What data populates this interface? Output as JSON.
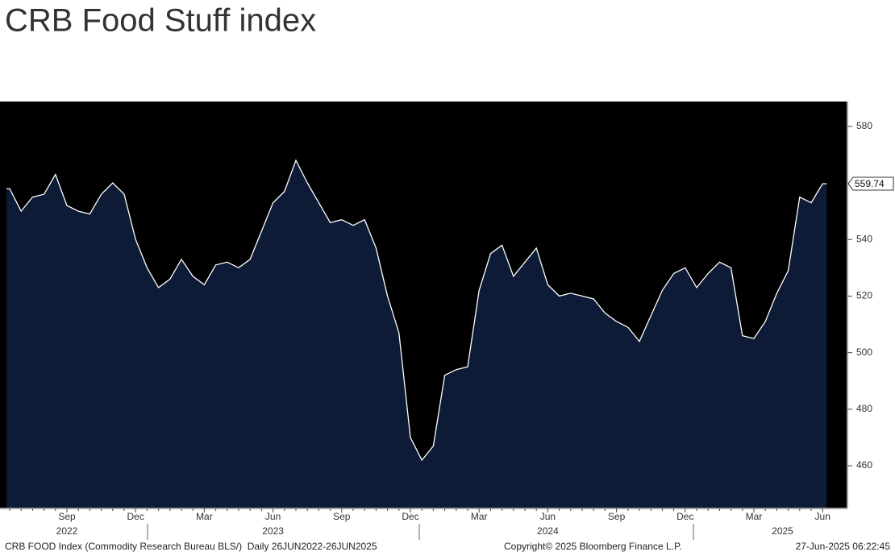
{
  "chart_data": {
    "type": "area",
    "title": "CRB Food Stuff index",
    "categories": [
      null,
      null,
      null,
      null,
      null,
      "Sep",
      null,
      null,
      null,
      null,
      null,
      "Dec",
      null,
      null,
      null,
      null,
      null,
      "Mar",
      null,
      null,
      null,
      null,
      null,
      "Jun",
      null,
      null,
      null,
      null,
      null,
      "Sep",
      null,
      null,
      null,
      null,
      null,
      "Dec",
      null,
      null,
      null,
      null,
      null,
      "Mar",
      null,
      null,
      null,
      null,
      null,
      "Jun",
      null,
      null,
      null,
      null,
      null,
      "Sep",
      null,
      null,
      null,
      null,
      null,
      "Dec",
      null,
      null,
      null,
      null,
      null,
      "Mar",
      null,
      null,
      null,
      null,
      null,
      "Jun"
    ],
    "year_labels": [
      "2022",
      "2023",
      "2024",
      "2025"
    ],
    "values": [
      558,
      550,
      555,
      556,
      563,
      552,
      550,
      549,
      556,
      560,
      556,
      540,
      530,
      523,
      526,
      533,
      527,
      524,
      531,
      532,
      530,
      533,
      543,
      553,
      557,
      568,
      560,
      553,
      546,
      547,
      545,
      547,
      537,
      520,
      507,
      470,
      462,
      467,
      492,
      494,
      495,
      522,
      535,
      538,
      527,
      532,
      537,
      524,
      520,
      521,
      520,
      519,
      514,
      511,
      509,
      504,
      513,
      522,
      528,
      530,
      523,
      528,
      532,
      530,
      506,
      505,
      511,
      521,
      529,
      555,
      553,
      559.74
    ],
    "line_color": "#ffffff",
    "fill_color": "#0d1b36",
    "background": "#000000",
    "ylim": [
      445.2,
      588.5
    ],
    "yticks": [
      460,
      480,
      500,
      520,
      540,
      580
    ],
    "footer_left": "CRB FOOD Index (Commodity Research Bureau BLS/)  Daily 26JUN2022-26JUN2025",
    "footer_center": "Copyright© 2025 Bloomberg Finance L.P.",
    "footer_right": "27-Jun-2025 06:22:45"
  }
}
